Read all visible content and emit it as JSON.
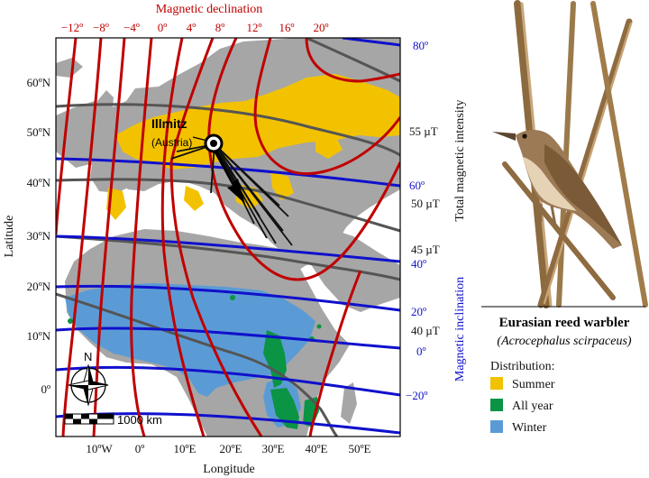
{
  "map": {
    "top_axis_title": "Magnetic declination",
    "x_axis_title": "Longitude",
    "y_axis_title": "Latitude",
    "right_axis_title_intensity": "Total magnetic intensity",
    "right_axis_title_inclination": "Magnetic inclination",
    "declination_ticks": [
      "−12º",
      "−8º",
      "−4º",
      "0º",
      "4º",
      "8º",
      "12º",
      "16º",
      "20º"
    ],
    "longitude_ticks": [
      "10ºW",
      "0º",
      "10ºE",
      "20ºE",
      "30ºE",
      "40ºE",
      "50ºE"
    ],
    "latitude_ticks": [
      "60ºN",
      "50ºN",
      "40ºN",
      "30ºN",
      "20ºN",
      "10ºN",
      "0º"
    ],
    "inclination_ticks": [
      "80º",
      "60º",
      "40º",
      "20º",
      "0º",
      "−20º"
    ],
    "intensity_ticks": [
      "55 µT",
      "50 µT",
      "45 µT",
      "40 µT"
    ],
    "site_name": "Illmitz",
    "site_country": "(Austria)",
    "compass_label": "N",
    "scale_label": "1000 km",
    "colors": {
      "declination": "#c00000",
      "inclination": "#1010cc",
      "intensity": "#555555",
      "land": "#a6a6a6",
      "summer": "#f2c200",
      "all_year": "#0b9444",
      "winter": "#5b9bd5"
    }
  },
  "species": {
    "common_name": "Eurasian reed warbler",
    "scientific_name": "(Acrocephalus scirpaceus)"
  },
  "legend": {
    "title": "Distribution:",
    "items": [
      {
        "label": "Summer",
        "color": "#f2c200"
      },
      {
        "label": "All year",
        "color": "#0b9444"
      },
      {
        "label": "Winter",
        "color": "#5b9bd5"
      }
    ]
  }
}
